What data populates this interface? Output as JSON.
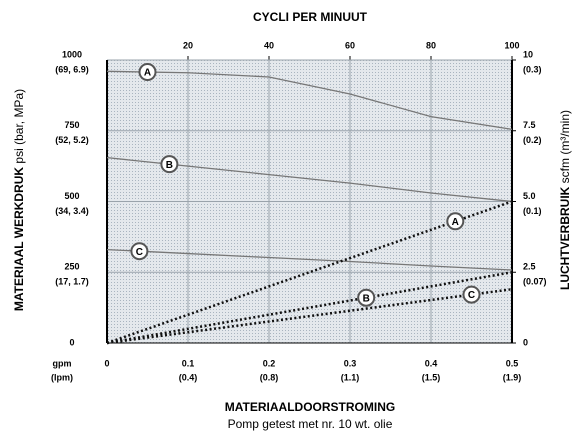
{
  "chart_data": {
    "type": "line",
    "title": "CYCLI PER MINUUT",
    "x_label": "MATERIAALDOORSTROMING",
    "subtitle": "Pomp getest met nr. 10 wt. olie",
    "y_label": {
      "bold": "MATERIAAL WERKDRUK",
      "normal": "psi (bar, MPa)"
    },
    "y2_label": {
      "bold": "LUCHTVERBRUIK",
      "normal": "scfm (m³/min)"
    },
    "x_unit": {
      "label": "gpm",
      "sublabel": "(lpm)"
    },
    "x": [
      0,
      0.1,
      0.2,
      0.3,
      0.4,
      0.5
    ],
    "xlim": [
      0,
      0.5
    ],
    "xticks": [
      0,
      {
        "value": 0.1,
        "label": "0.1",
        "sublabel": "(0.4)"
      },
      {
        "value": 0.2,
        "label": "0.2",
        "sublabel": "(0.8)"
      },
      {
        "value": 0.3,
        "label": "0.3",
        "sublabel": "(1.1)"
      },
      {
        "value": 0.4,
        "label": "0.4",
        "sublabel": "(1.5)"
      },
      {
        "value": 0.5,
        "label": "0.5",
        "sublabel": "(1.9)"
      }
    ],
    "x2lim": [
      0,
      100
    ],
    "x2ticks": [
      20,
      40,
      60,
      80,
      100
    ],
    "ylim": [
      0,
      1000
    ],
    "yticks": [
      0,
      {
        "value": 250,
        "label": "250",
        "sublabel": "(17, 1.7)"
      },
      {
        "value": 500,
        "label": "500",
        "sublabel": "(34, 3.4)"
      },
      {
        "value": 750,
        "label": "750",
        "sublabel": "(52, 5.2)"
      },
      {
        "value": 1000,
        "label": "1000",
        "sublabel": "(69, 6.9)"
      }
    ],
    "y2lim": [
      0,
      10
    ],
    "y2ticks": [
      0,
      {
        "value": 2.5,
        "label": "2.5",
        "sublabel": "(0.07)"
      },
      {
        "value": 5.0,
        "label": "5.0",
        "sublabel": "(0.1)"
      },
      {
        "value": 7.5,
        "label": "7.5",
        "sublabel": "(0.2)"
      },
      {
        "value": 10,
        "label": "10",
        "sublabel": "(0.3)"
      }
    ],
    "grid": true,
    "series": [
      {
        "name": "A",
        "color": "#777777",
        "style": "solid",
        "values": [
          960,
          955,
          940,
          880,
          800,
          755
        ]
      },
      {
        "name": "B",
        "color": "#777777",
        "style": "solid",
        "values": [
          655,
          625,
          595,
          565,
          530,
          500
        ]
      },
      {
        "name": "C",
        "color": "#777777",
        "style": "solid",
        "values": [
          330,
          316,
          302,
          288,
          272,
          258
        ]
      },
      {
        "name": "A",
        "color": "#111111",
        "style": "dotted",
        "axis": "y2",
        "values": [
          0,
          1,
          2,
          3,
          4,
          5
        ]
      },
      {
        "name": "B",
        "color": "#111111",
        "style": "dotted",
        "axis": "y2",
        "values": [
          0,
          0.5,
          1,
          1.5,
          2,
          2.5
        ]
      },
      {
        "name": "C",
        "color": "#111111",
        "style": "dotted",
        "axis": "y2",
        "values": [
          0,
          0.38,
          0.76,
          1.14,
          1.52,
          1.9
        ]
      }
    ]
  }
}
